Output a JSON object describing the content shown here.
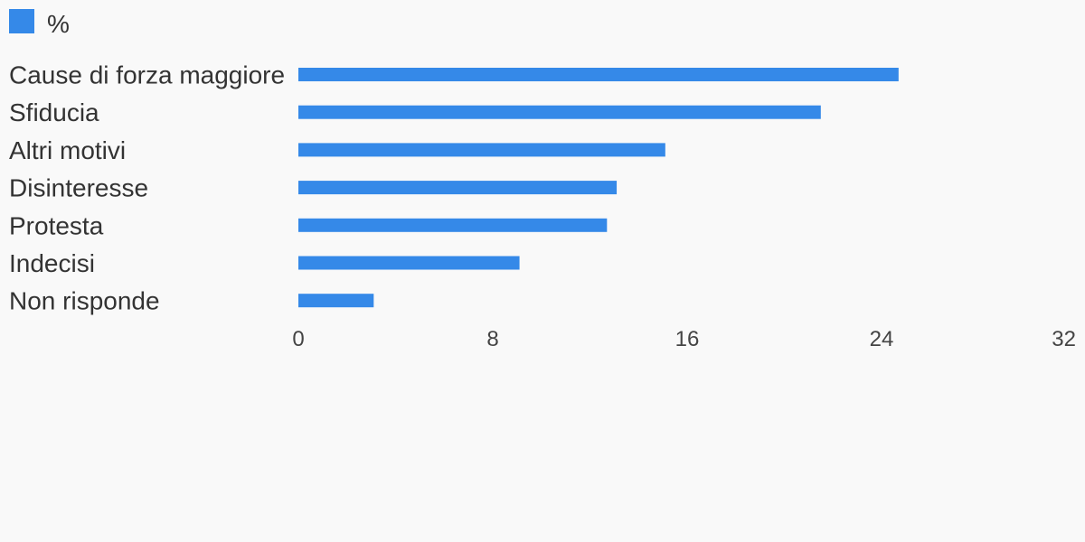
{
  "chart_data": {
    "type": "bar",
    "orientation": "horizontal",
    "categories": [
      "Cause di forza maggiore",
      "Sfiducia",
      "Altri motivi",
      "Disinteresse",
      "Protesta",
      "Indecisi",
      "Non risponde"
    ],
    "series": [
      {
        "name": "%",
        "color": "#3589e8",
        "values": [
          24.7,
          21.5,
          15.1,
          13.1,
          12.7,
          9.1,
          3.1
        ]
      }
    ],
    "x_ticks": [
      "0",
      "8",
      "16",
      "24",
      "32"
    ],
    "xlim": [
      0,
      32
    ],
    "grid": false,
    "legend": "top-left"
  }
}
